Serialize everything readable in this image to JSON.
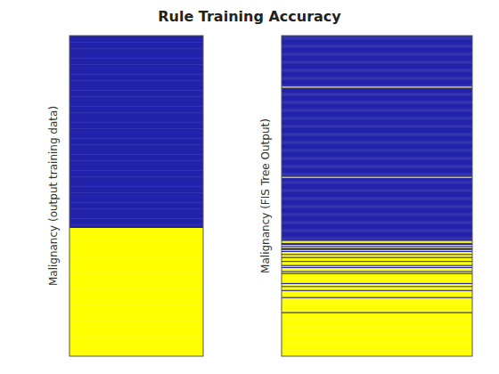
{
  "chart_data": [
    {
      "type": "heatmap",
      "title": "Rule Training Accuracy",
      "ylabel": "Malignancy (output training data)",
      "colors": [
        "#ffff00",
        "#2222aa"
      ],
      "ylim": [
        100,
        0
      ],
      "tick_labels": false,
      "values": [
        1,
        1,
        1,
        1,
        1,
        1,
        1,
        1,
        1,
        1,
        1,
        1,
        1,
        1,
        1,
        1,
        1,
        1,
        1,
        1,
        1,
        1,
        1,
        1,
        1,
        1,
        1,
        1,
        1,
        1,
        1,
        1,
        1,
        1,
        1,
        1,
        1,
        1,
        1,
        1,
        1,
        1,
        1,
        1,
        1,
        1,
        1,
        1,
        1,
        1,
        1,
        1,
        1,
        1,
        1,
        1,
        1,
        1,
        1,
        1,
        0,
        0,
        0,
        0,
        0,
        0,
        0,
        0,
        0,
        0,
        0,
        0,
        0,
        0,
        0,
        0,
        0,
        0,
        0,
        0,
        0,
        0,
        0,
        0,
        0,
        0,
        0,
        0,
        0,
        0,
        0,
        0,
        0,
        0,
        0,
        0,
        0,
        0,
        0,
        0
      ]
    },
    {
      "type": "heatmap",
      "ylabel": "Malignancy (FIS Tree Output)",
      "colors": [
        "#ffff00",
        "#2222aa"
      ],
      "ylim": [
        320,
        0
      ],
      "tick_labels": false,
      "values": [
        1,
        1,
        1,
        1,
        1,
        1,
        1,
        1,
        1,
        1,
        1,
        1,
        1,
        1,
        1,
        1,
        1,
        1,
        1,
        1,
        1,
        1,
        1,
        1,
        1,
        1,
        1,
        1,
        1,
        1,
        1,
        1,
        1,
        1,
        1,
        1,
        1,
        1,
        1,
        1,
        1,
        1,
        1,
        1,
        1,
        1,
        1,
        1,
        1,
        1,
        1,
        0,
        1,
        1,
        1,
        1,
        1,
        1,
        1,
        1,
        1,
        1,
        1,
        1,
        1,
        1,
        1,
        1,
        1,
        1,
        1,
        1,
        1,
        1,
        1,
        1,
        1,
        1,
        1,
        1,
        1,
        1,
        1,
        1,
        1,
        1,
        1,
        1,
        1,
        1,
        1,
        1,
        1,
        1,
        1,
        1,
        1,
        1,
        1,
        1,
        1,
        1,
        1,
        1,
        1,
        1,
        1,
        1,
        1,
        1,
        1,
        1,
        1,
        1,
        1,
        1,
        1,
        1,
        1,
        1,
        1,
        1,
        1,
        1,
        1,
        1,
        1,
        1,
        1,
        1,
        1,
        1,
        1,
        1,
        1,
        1,
        1,
        1,
        1,
        1,
        1,
        0,
        1,
        1,
        1,
        1,
        1,
        1,
        1,
        1,
        1,
        1,
        1,
        1,
        1,
        1,
        1,
        1,
        1,
        1,
        1,
        1,
        1,
        1,
        1,
        1,
        1,
        1,
        1,
        1,
        1,
        1,
        1,
        1,
        1,
        1,
        1,
        1,
        1,
        1,
        1,
        1,
        1,
        1,
        1,
        1,
        1,
        1,
        1,
        1,
        1,
        1,
        1,
        1,
        1,
        1,
        1,
        1,
        1,
        1,
        1,
        1,
        1,
        1,
        1,
        0,
        0,
        1,
        1,
        0,
        1,
        0,
        1,
        1,
        0,
        1,
        0,
        0,
        1,
        0,
        0,
        1,
        0,
        0,
        0,
        1,
        0,
        0,
        0,
        1,
        0,
        1,
        0,
        0,
        0,
        1,
        0,
        1,
        0,
        0,
        0,
        0,
        0,
        0,
        0,
        0,
        0,
        1,
        0,
        0,
        1,
        0,
        0,
        0,
        1,
        0,
        0,
        0,
        0,
        0,
        0,
        1,
        0,
        0,
        0,
        0,
        0,
        0,
        0,
        0,
        0,
        0,
        0,
        0,
        0,
        0,
        1,
        0,
        0,
        0,
        0,
        0,
        0,
        0,
        0,
        0,
        0,
        0,
        0,
        0,
        0,
        0,
        0,
        0,
        0,
        0,
        0,
        0,
        0,
        0,
        0,
        0,
        0,
        0,
        0,
        0,
        0,
        0,
        0,
        0,
        0,
        0,
        0,
        0,
        0,
        0,
        0,
        0,
        0,
        0
      ]
    }
  ]
}
